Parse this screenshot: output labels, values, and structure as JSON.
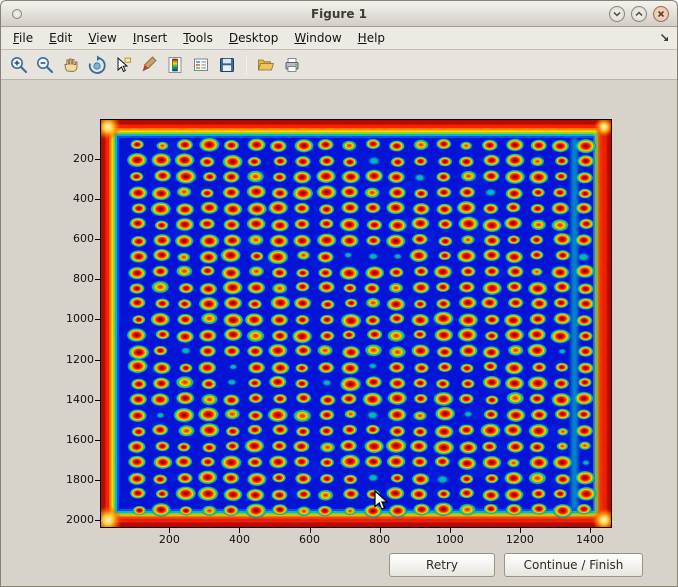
{
  "window": {
    "title": "Figure 1",
    "controls": [
      "window-menu-icon",
      "chevron-down-icon",
      "chevron-up-icon",
      "close-x-icon"
    ]
  },
  "menu": {
    "items": [
      "File",
      "Edit",
      "View",
      "Insert",
      "Tools",
      "Desktop",
      "Window",
      "Help"
    ],
    "dock_icon": "dock-arrow-icon"
  },
  "toolbar": {
    "icons": [
      "zoom-in-icon",
      "zoom-out-icon",
      "pan-icon",
      "rotate-3d-icon",
      "data-cursor-icon",
      "brush-icon",
      "colorbar-icon",
      "legend-icon",
      "save-icon",
      "open-icon",
      "print-icon"
    ]
  },
  "plot": {
    "x_ticks": [
      "200",
      "400",
      "600",
      "800",
      "1000",
      "1200",
      "1400"
    ],
    "y_ticks": [
      "200",
      "400",
      "600",
      "800",
      "1000",
      "1200",
      "1400",
      "1600",
      "1800",
      "2000"
    ],
    "image": {
      "description": "microarray-style heatmap in jet colormap: grid of hot spots on blue background with hot red/yellow plate edges",
      "rows": 24,
      "cols": 20,
      "background_color": "#0414d6",
      "spot_core_color": "#c00000",
      "spot_halo_colors": [
        "#ff9400",
        "#ffe300",
        "#3ecb1e",
        "#00c6c9"
      ],
      "border_colors": [
        "#b80800",
        "#f42400",
        "#ff8c00",
        "#ffdc00",
        "#7ed41e",
        "#00c4d4"
      ]
    }
  },
  "buttons": {
    "retry": "Retry",
    "continue_finish": "Continue / Finish"
  }
}
